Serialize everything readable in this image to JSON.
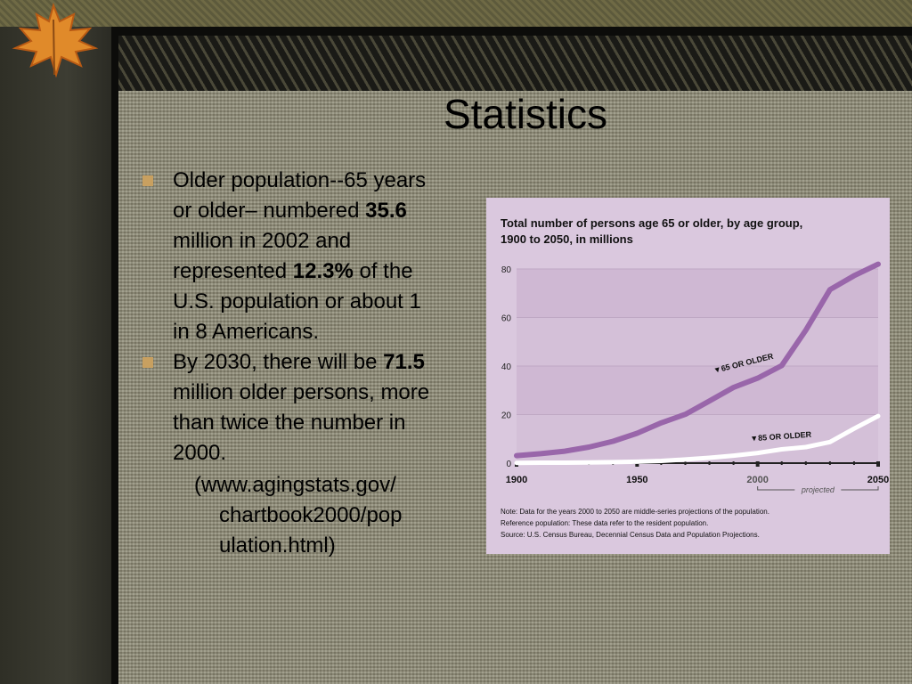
{
  "slide": {
    "title": "Statistics",
    "bullets": [
      {
        "pre": "Older population--65 years or older– numbered ",
        "b1": "35.6",
        "mid": " million in 2002 and represented ",
        "b2": "12.3%",
        "post": " of the U.S. population or about 1 in 8 Americans."
      },
      {
        "pre": "By 2030, there will be ",
        "b1": "71.5",
        "post": " million older persons, more than twice the number in 2000."
      }
    ],
    "source": "(www.agingstats.gov/ chartbook2000/pop ulation.html)"
  },
  "colors": {
    "series_65": "#9966aa",
    "series_85": "#ffffff",
    "chart_bg": "#dac8de",
    "bullet_marker": "#c8a060"
  },
  "chart_data": {
    "type": "line",
    "title": "Total number of persons age 65 or older, by age group, 1900 to 2050, in millions",
    "title_lines": [
      "Total number of persons age 65 or older, by age group,",
      "1900 to 2050, in millions"
    ],
    "xlim": [
      1900,
      2050
    ],
    "ylim": [
      0,
      80
    ],
    "y_ticks": [
      0,
      20,
      40,
      60,
      80
    ],
    "x_ticks": [
      1900,
      1950,
      2000,
      2050
    ],
    "projected_label": "projected",
    "series": [
      {
        "name": "65 OR OLDER",
        "label_text": "▼65 OR OLDER",
        "x": [
          1900,
          1910,
          1920,
          1930,
          1940,
          1950,
          1960,
          1970,
          1980,
          1990,
          2000,
          2010,
          2020,
          2030,
          2040,
          2050
        ],
        "y": [
          3.1,
          3.9,
          4.9,
          6.6,
          9.0,
          12.3,
          16.6,
          20.1,
          25.6,
          31.2,
          35.0,
          40.2,
          54.8,
          71.5,
          77.2,
          82.0
        ]
      },
      {
        "name": "85 OR OLDER",
        "label_text": "▼85 OR OLDER",
        "x": [
          1900,
          1910,
          1920,
          1930,
          1940,
          1950,
          1960,
          1970,
          1980,
          1990,
          2000,
          2010,
          2020,
          2030,
          2040,
          2050
        ],
        "y": [
          0.1,
          0.2,
          0.2,
          0.3,
          0.4,
          0.6,
          0.9,
          1.5,
          2.2,
          3.1,
          4.2,
          5.7,
          6.6,
          8.7,
          14.2,
          19.4
        ]
      }
    ],
    "notes": [
      "Note: Data for the years 2000 to 2050 are middle-series projections of the population.",
      "Reference population: These data refer to the resident population.",
      "Source: U.S. Census Bureau, Decennial Census Data and Population Projections."
    ]
  }
}
